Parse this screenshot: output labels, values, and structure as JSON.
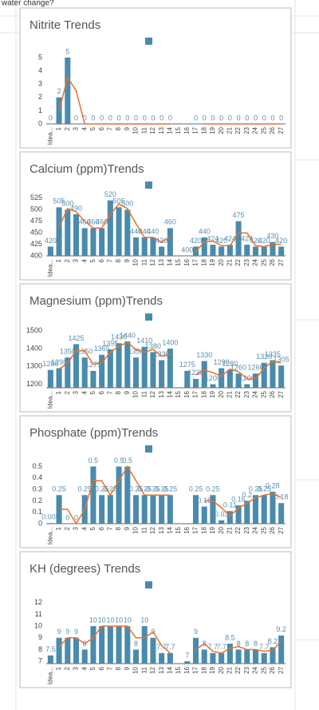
{
  "header_text": "water change?",
  "chart_data": [
    {
      "type": "bar",
      "title": "Nitrite Trends",
      "color": "#4a8bad",
      "trend_color": "#e8702a",
      "grid": false,
      "categories": [
        "Idea...",
        "1",
        "2",
        "3",
        "4",
        "5",
        "6",
        "7",
        "8",
        "9",
        "10",
        "11",
        "12",
        "13",
        "14",
        "15",
        "16",
        "17",
        "18",
        "19",
        "20",
        "21",
        "22",
        "23",
        "24",
        "25",
        "26",
        "27"
      ],
      "values": [
        0,
        2,
        5,
        0,
        0,
        0,
        0,
        0,
        0,
        0,
        0,
        0,
        0,
        0,
        0,
        null,
        null,
        0,
        0,
        0,
        0,
        0,
        0,
        0,
        0,
        0,
        0,
        0
      ],
      "ylim": [
        0,
        5.6
      ],
      "yticks": [
        0,
        1,
        2,
        3,
        4,
        5
      ]
    },
    {
      "type": "bar",
      "title": "Calcium (ppm)Trends",
      "color": "#4a8bad",
      "trend_color": "#e8702a",
      "grid": false,
      "categories": [
        "Idea...",
        "1",
        "2",
        "3",
        "4",
        "5",
        "6",
        "7",
        "8",
        "9",
        "10",
        "11",
        "12",
        "13",
        "14",
        "15",
        "16",
        "17",
        "18",
        "19",
        "20",
        "21",
        "22",
        "23",
        "24",
        "25",
        "26",
        "27"
      ],
      "values": [
        420,
        505,
        500,
        490,
        460,
        460,
        460,
        520,
        505,
        500,
        440,
        440,
        440,
        420,
        460,
        null,
        400,
        420,
        440,
        424,
        420,
        424,
        475,
        424,
        420,
        420,
        430,
        420
      ],
      "ylim": [
        400,
        535
      ],
      "yticks": [
        400,
        425,
        450,
        475,
        500,
        525
      ]
    },
    {
      "type": "bar",
      "title": "Magnesium (ppm)Trends",
      "color": "#4a8bad",
      "trend_color": "#e8702a",
      "grid": false,
      "categories": [
        "Idea...",
        "1",
        "2",
        "3",
        "4",
        "5",
        "6",
        "7",
        "8",
        "9",
        "10",
        "11",
        "12",
        "13",
        "14",
        "15",
        "16",
        "17",
        "18",
        "19",
        "20",
        "21",
        "22",
        "23",
        "24",
        "25",
        "26",
        "27"
      ],
      "values": [
        1280,
        1290,
        1350,
        1425,
        1350,
        1275,
        1365,
        1395,
        1430,
        1440,
        1350,
        1410,
        1380,
        1335,
        1400,
        null,
        1275,
        1230,
        1330,
        1200,
        1290,
        1280,
        1260,
        1200,
        1260,
        1320,
        1335,
        1305
      ],
      "ylim": [
        1180,
        1530
      ],
      "yticks": [
        1200,
        1300,
        1400,
        1500
      ]
    },
    {
      "type": "bar",
      "title": "Phosphate (ppm)Trends",
      "color": "#4a8bad",
      "trend_color": "#e8702a",
      "grid": false,
      "categories": [
        "Idea...",
        "1",
        "2",
        "3",
        "4",
        "5",
        "6",
        "7",
        "8",
        "9",
        "10",
        "11",
        "12",
        "13",
        "14",
        "15",
        "16",
        "17",
        "18",
        "19",
        "20",
        "21",
        "22",
        "23",
        "24",
        "25",
        "26",
        "27"
      ],
      "values": [
        0.005,
        0.25,
        0,
        0,
        0.25,
        0.5,
        0.25,
        0.25,
        0.5,
        0.5,
        0.25,
        0.25,
        0.25,
        0.25,
        0.25,
        null,
        null,
        0.25,
        0.15,
        0.25,
        0.03,
        0.11,
        0.16,
        0.2,
        0.25,
        0.25,
        0.28,
        0.18
      ],
      "ylim": [
        0,
        0.58
      ],
      "yticks": [
        0,
        0.1,
        0.2,
        0.3,
        0.4,
        0.5
      ]
    },
    {
      "type": "bar",
      "title": "KH (degrees) Trends",
      "color": "#4a8bad",
      "trend_color": "#e8702a",
      "grid": false,
      "categories": [
        "Idea...",
        "1",
        "2",
        "3",
        "4",
        "5",
        "6",
        "7",
        "8",
        "9",
        "10",
        "11",
        "12",
        "13",
        "14",
        "15",
        "16",
        "17",
        "18",
        "19",
        "20",
        "21",
        "22",
        "23",
        "24",
        "25",
        "26",
        "27"
      ],
      "values": [
        7.5,
        9,
        9,
        9,
        8,
        10,
        10,
        10,
        10,
        10,
        8,
        10,
        9,
        7.7,
        7.7,
        null,
        7,
        9,
        8,
        7.7,
        7.7,
        8.5,
        8,
        8,
        8,
        7.7,
        8.2,
        9.2
      ],
      "ylim": [
        6.8,
        12.8
      ],
      "yticks": [
        7,
        8,
        9,
        10,
        11,
        12
      ]
    }
  ]
}
